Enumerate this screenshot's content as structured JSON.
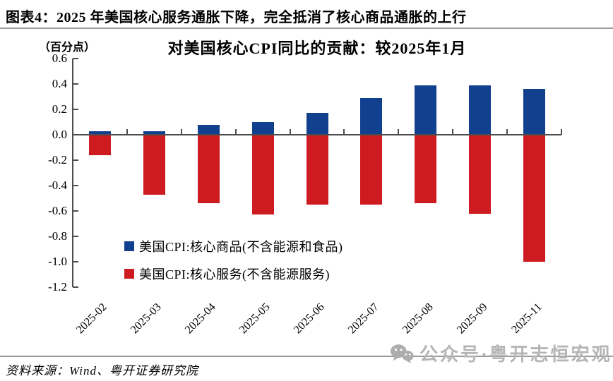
{
  "page": {
    "header_title": "图表4：2025 年美国核心服务通胀下降，完全抵消了核心商品通胀的上行",
    "source_note": "资料来源：Wind、粤开证券研究院",
    "watermark_text": "公众号·粤开志恒宏观"
  },
  "chart_data": {
    "type": "bar",
    "title": "对美国核心CPI同比的贡献：较2025年1月",
    "unit_label": "（百分点）",
    "categories": [
      "2025-02",
      "2025-03",
      "2025-04",
      "2025-05",
      "2025-06",
      "2025-07",
      "2025-08",
      "2025-09",
      "2025-11"
    ],
    "series": [
      {
        "name": "美国CPI:核心商品(不含能源和食品)",
        "color": "#11408F",
        "values": [
          0.03,
          0.03,
          0.08,
          0.1,
          0.17,
          0.29,
          0.39,
          0.39,
          0.36
        ]
      },
      {
        "name": "美国CPI:核心服务(不含能源服务)",
        "color": "#CE1B21",
        "values": [
          -0.16,
          -0.47,
          -0.54,
          -0.63,
          -0.55,
          -0.55,
          -0.54,
          -0.62,
          -1.0
        ]
      }
    ],
    "xlabel": "",
    "ylabel": "",
    "ylim": [
      -1.2,
      0.6
    ],
    "yticks": [
      0.6,
      0.4,
      0.2,
      0.0,
      -0.2,
      -0.4,
      -0.6,
      -0.8,
      -1.0,
      -1.2
    ],
    "grid": false,
    "legend_position": "inside-bottom-left"
  }
}
